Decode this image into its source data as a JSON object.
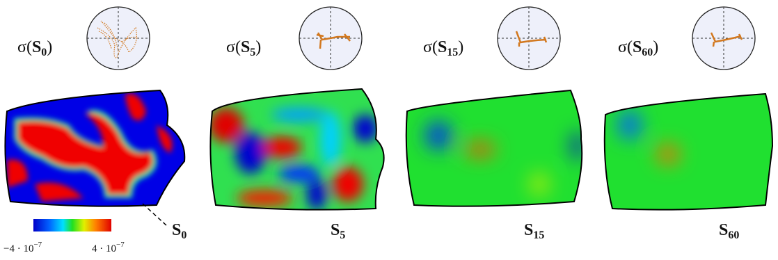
{
  "panels": [
    {
      "label": {
        "open": "σ(",
        "symbol": "S",
        "subscript": "0",
        "close": ")"
      },
      "caption": {
        "symbol": "S",
        "subscript": "0"
      }
    },
    {
      "label": {
        "open": "σ(",
        "symbol": "S",
        "subscript": "5",
        "close": ")"
      },
      "caption": {
        "symbol": "S",
        "subscript": "5"
      }
    },
    {
      "label": {
        "open": "σ(",
        "symbol": "S",
        "subscript": "15",
        "close": ")"
      },
      "caption": {
        "symbol": "S",
        "subscript": "15"
      }
    },
    {
      "label": {
        "open": "σ(",
        "symbol": "S",
        "subscript": "60",
        "close": ")"
      },
      "caption": {
        "symbol": "S",
        "subscript": "60"
      }
    }
  ],
  "colorbar": {
    "min": {
      "base": "−4 · 10",
      "exponent": "−7"
    },
    "max": {
      "base": "4 · 10",
      "exponent": "−7"
    }
  }
}
